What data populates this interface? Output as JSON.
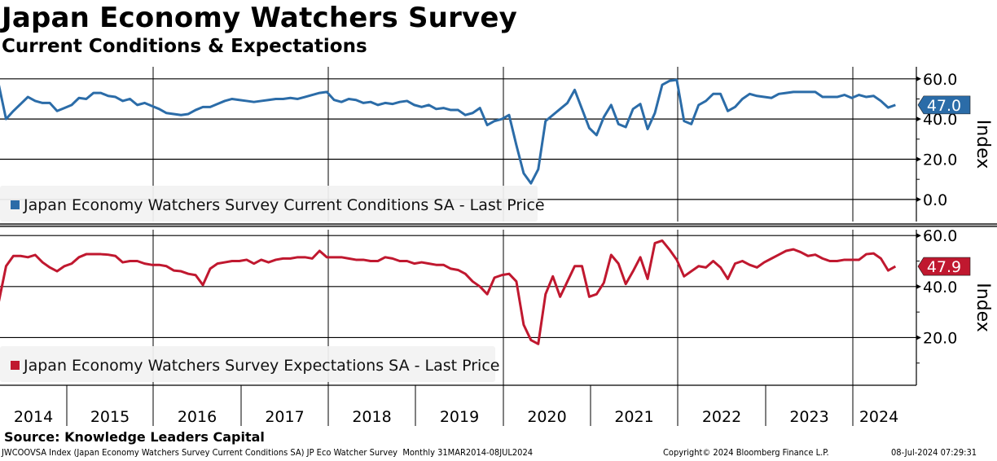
{
  "title": "Japan Economy Watchers Survey",
  "subtitle": "Current Conditions & Expectations",
  "source": "Source: Knowledge Leaders Capital",
  "footer": {
    "left": "JWCOOVSA Index (Japan Economy Watchers Survey Current Conditions SA) JP Eco Watcher Survey  Monthly 31MAR2014-08JUL2024",
    "copyright": "Copyright© 2024 Bloomberg Finance L.P.",
    "timestamp": "08-Jul-2024 07:29:31"
  },
  "chart_data": [
    {
      "type": "line",
      "name": "Japan Economy Watchers Survey Current Conditions SA - Last Price",
      "legend": "Japan Economy Watchers Survey Current Conditions SA - Last Price",
      "color": "#2b6ca8",
      "ylabel": "Index",
      "yticks": [
        "60.0",
        "40.0",
        "20.0",
        "0.0"
      ],
      "ytick_values": [
        60,
        40,
        20,
        0
      ],
      "ylim": [
        -11,
        66
      ],
      "last_value": "47.0",
      "start": "2014-03",
      "frequency": "monthly",
      "values": [
        57,
        40,
        44,
        47.5,
        51,
        49,
        48,
        48,
        44,
        45.5,
        47,
        50.5,
        50,
        53,
        53,
        51.5,
        51,
        49,
        50,
        47,
        48,
        46.5,
        45,
        43,
        42.5,
        42,
        42.5,
        44.5,
        46,
        46,
        47.5,
        49,
        50,
        49.5,
        49,
        48.5,
        49,
        49.5,
        50,
        50,
        50.5,
        50,
        51,
        52,
        53,
        53.5,
        49.5,
        48.5,
        50,
        49.5,
        48,
        48.5,
        47,
        48,
        47.5,
        48.5,
        49,
        47,
        46,
        47,
        45,
        45.5,
        44.5,
        44.5,
        42,
        43,
        45.5,
        37,
        39,
        40,
        42,
        27,
        13,
        8,
        15,
        39,
        42,
        45,
        48,
        54.5,
        45,
        35.5,
        32,
        41,
        47,
        37.5,
        36,
        45,
        47.5,
        35,
        43,
        57,
        59,
        59.5,
        39,
        37.5,
        47,
        49,
        52.5,
        52.5,
        44,
        46,
        50,
        52.5,
        51.5,
        51,
        50.5,
        52.5,
        53,
        53.5,
        53.5,
        53.5,
        53.5,
        51,
        51,
        51,
        52,
        50.5,
        52,
        51,
        51.5,
        49,
        45.7,
        47.0
      ]
    },
    {
      "type": "line",
      "name": "Japan Economy Watchers Survey Expectations SA - Last Price",
      "legend": "Japan Economy Watchers Survey Expectations SA - Last Price",
      "color": "#c0182f",
      "ylabel": "Index",
      "yticks": [
        "60.0",
        "40.0",
        "20.0"
      ],
      "ytick_values": [
        60,
        40,
        20
      ],
      "ylim": [
        1.3,
        62.3
      ],
      "last_value": "47.9",
      "start": "2014-03",
      "frequency": "monthly",
      "values": [
        34,
        48,
        52,
        52,
        51.5,
        52.4,
        49.5,
        47.5,
        46,
        48,
        49,
        51.5,
        52.7,
        52.7,
        52.7,
        52.5,
        52,
        49.5,
        50,
        50,
        49,
        48.5,
        48.5,
        48,
        46.3,
        46,
        45,
        44.5,
        40.6,
        47,
        49,
        49.5,
        50,
        50,
        50.5,
        49,
        50.5,
        49.5,
        50.5,
        51,
        51,
        51.5,
        51.5,
        51,
        54,
        51.5,
        51.5,
        51.5,
        51,
        50.5,
        50.5,
        50,
        50,
        51.5,
        51,
        50,
        50,
        49,
        49.5,
        49,
        48.5,
        48.5,
        47,
        46.5,
        45,
        42,
        40,
        37,
        43.5,
        44.5,
        45,
        42,
        25,
        19,
        17.5,
        37,
        44,
        36,
        42,
        48,
        48,
        36,
        37,
        41.5,
        52.4,
        49,
        41,
        46,
        51.5,
        43,
        57,
        58,
        54.5,
        50.5,
        44,
        46,
        48,
        47.5,
        50,
        47.5,
        43,
        49,
        50,
        48.5,
        47.5,
        49.5,
        51,
        52.5,
        54,
        54.6,
        53.5,
        52,
        52.5,
        51,
        50,
        50,
        50.5,
        50.5,
        50.5,
        52.7,
        53,
        51,
        46.3,
        47.9
      ]
    }
  ],
  "xaxis": {
    "years": [
      "2014",
      "2015",
      "2016",
      "2017",
      "2018",
      "2019",
      "2020",
      "2021",
      "2022",
      "2023",
      "2024"
    ]
  }
}
